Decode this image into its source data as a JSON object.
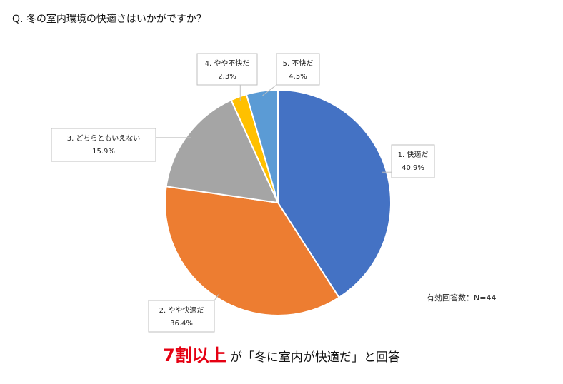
{
  "title": "Q. 冬の室内環境の快適さはいかがですか？",
  "n_label": "有効回答数：N=44",
  "footer": {
    "highlight": "7割以上",
    "rest": "が「冬に室内が快適だ」と回答"
  },
  "chart_data": {
    "type": "pie",
    "title": "Q. 冬の室内環境の快適さはいかがですか？",
    "start_angle_deg": 0,
    "direction": "clockwise",
    "slices": [
      {
        "label": "1. 快適だ",
        "value": 40.9,
        "value_label": "40.9%",
        "color": "#4472C4"
      },
      {
        "label": "2. やや快適だ",
        "value": 36.4,
        "value_label": "36.4%",
        "color": "#ED7D31"
      },
      {
        "label": "3. どちらともいえない",
        "value": 15.9,
        "value_label": "15.9%",
        "color": "#A5A5A5"
      },
      {
        "label": "4. やや不快だ",
        "value": 2.3,
        "value_label": "2.3%",
        "color": "#FFC000"
      },
      {
        "label": "5. 不快だ",
        "value": 4.5,
        "value_label": "4.5%",
        "color": "#5B9BD5"
      }
    ]
  }
}
